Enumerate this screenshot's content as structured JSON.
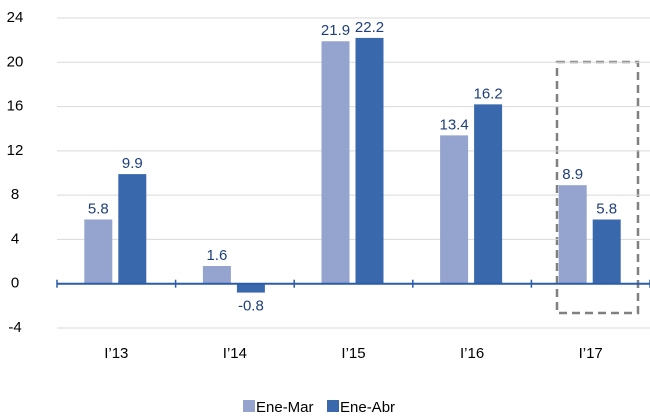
{
  "chart_data": {
    "type": "bar",
    "categories": [
      "I’13",
      "I’14",
      "I’15",
      "I’16",
      "I’17"
    ],
    "series": [
      {
        "name": "Ene-Mar",
        "color": "#95a3cf",
        "values": [
          5.8,
          1.6,
          21.9,
          13.4,
          8.9
        ]
      },
      {
        "name": "Ene-Abr",
        "color": "#3a68ad",
        "values": [
          9.9,
          -0.8,
          22.2,
          16.2,
          5.8
        ]
      }
    ],
    "ylim": [
      -4,
      24
    ],
    "yticks": [
      -4,
      0,
      4,
      8,
      12,
      16,
      20,
      24
    ],
    "grid": true
  }
}
